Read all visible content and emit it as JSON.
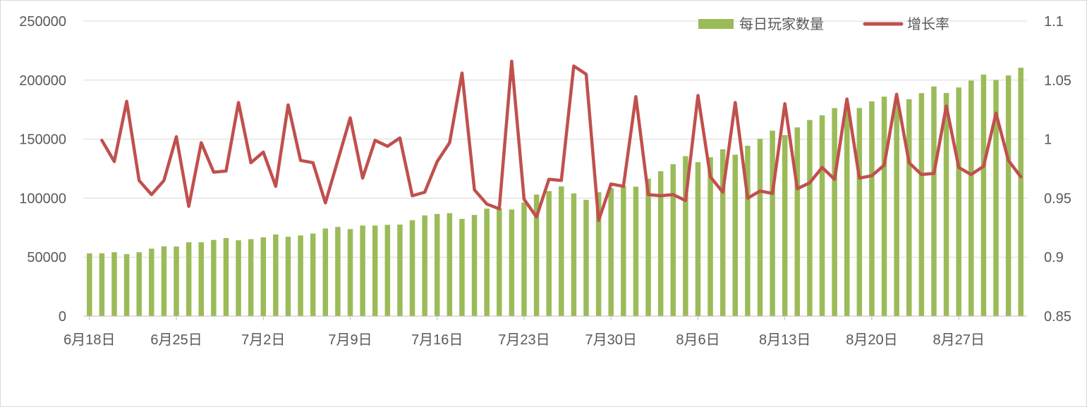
{
  "chart_data": {
    "type": "bar",
    "title": "",
    "grid": true,
    "legend_position": "top-right",
    "x_tick_labels": [
      "6月18日",
      "6月25日",
      "7月2日",
      "7月9日",
      "7月16日",
      "7月23日",
      "7月30日",
      "8月6日",
      "8月13日",
      "8月20日",
      "8月27日"
    ],
    "y_left": {
      "min": 0,
      "max": 250000,
      "ticks": [
        "0",
        "50000",
        "100000",
        "150000",
        "200000",
        "250000"
      ]
    },
    "y_right": {
      "min": 0.85,
      "max": 1.1,
      "ticks": [
        "0.85",
        "0.9",
        "0.95",
        "1",
        "1.05",
        "1.1"
      ]
    },
    "colors": {
      "bars": "#9bbb59",
      "line": "#c0504d",
      "grid": "#d9d9d9",
      "axis": "#bfbfbf",
      "text": "#595959"
    },
    "categories": [
      "6月18日",
      "6月19日",
      "6月20日",
      "6月21日",
      "6月22日",
      "6月23日",
      "6月24日",
      "6月25日",
      "6月26日",
      "6月27日",
      "6月28日",
      "6月29日",
      "6月30日",
      "7月1日",
      "7月2日",
      "7月3日",
      "7月4日",
      "7月5日",
      "7月6日",
      "7月7日",
      "7月8日",
      "7月9日",
      "7月10日",
      "7月11日",
      "7月12日",
      "7月13日",
      "7月14日",
      "7月15日",
      "7月16日",
      "7月17日",
      "7月18日",
      "7月19日",
      "7月20日",
      "7月21日",
      "7月22日",
      "7月23日",
      "7月24日",
      "7月25日",
      "7月26日",
      "7月27日",
      "7月28日",
      "7月29日",
      "7月30日",
      "7月31日",
      "8月1日",
      "8月2日",
      "8月3日",
      "8月4日",
      "8月5日",
      "8月6日",
      "8月7日",
      "8月8日",
      "8月9日",
      "8月10日",
      "8月11日",
      "8月12日",
      "8月13日",
      "8月14日",
      "8月15日",
      "8月16日",
      "8月17日",
      "8月18日",
      "8月19日",
      "8月20日",
      "8月21日",
      "8月22日",
      "8月23日",
      "8月24日",
      "8月25日",
      "8月26日",
      "8月27日",
      "8月28日",
      "8月29日",
      "8月30日",
      "8月31日",
      "9月1日"
    ],
    "series": [
      {
        "name": "每日玩家数量",
        "type": "bar",
        "axis": "left",
        "values": [
          53200,
          53300,
          54200,
          52600,
          54200,
          57200,
          59200,
          59000,
          62600,
          62600,
          64600,
          66200,
          64300,
          65300,
          66800,
          69200,
          67300,
          68400,
          70000,
          74300,
          75600,
          73800,
          76800,
          76800,
          77400,
          77600,
          81300,
          85400,
          86600,
          87300,
          82400,
          85800,
          91100,
          91500,
          90400,
          96300,
          103000,
          106000,
          110000,
          104000,
          98600,
          105000,
          108500,
          110300,
          109700,
          116500,
          122800,
          128800,
          135600,
          130500,
          134700,
          141400,
          136800,
          144400,
          150300,
          157200,
          153400,
          160000,
          166200,
          170200,
          176300,
          180000,
          176400,
          182000,
          186000,
          180000,
          183800,
          189000,
          194600,
          189100,
          193800,
          199600,
          204700,
          200200,
          204000,
          210500
        ]
      },
      {
        "name": "增长率",
        "type": "line",
        "axis": "right",
        "values": [
          null,
          0.999,
          0.981,
          1.032,
          0.965,
          0.953,
          0.965,
          1.002,
          0.943,
          0.997,
          0.972,
          0.973,
          1.031,
          0.98,
          0.989,
          0.96,
          1.029,
          0.982,
          0.98,
          0.946,
          0.982,
          1.018,
          0.967,
          0.999,
          0.994,
          1.001,
          0.952,
          0.955,
          0.981,
          0.997,
          1.056,
          0.957,
          0.945,
          0.941,
          1.066,
          0.949,
          0.934,
          0.966,
          0.965,
          1.062,
          1.055,
          0.931,
          0.962,
          0.96,
          1.036,
          0.953,
          0.952,
          0.953,
          0.948,
          1.037,
          0.968,
          0.955,
          1.031,
          0.95,
          0.956,
          0.954,
          1.03,
          0.958,
          0.963,
          0.976,
          0.966,
          1.034,
          0.967,
          0.969,
          0.978,
          1.038,
          0.98,
          0.97,
          0.971,
          1.028,
          0.976,
          0.97,
          0.977,
          1.022,
          0.982,
          0.968
        ]
      }
    ]
  }
}
